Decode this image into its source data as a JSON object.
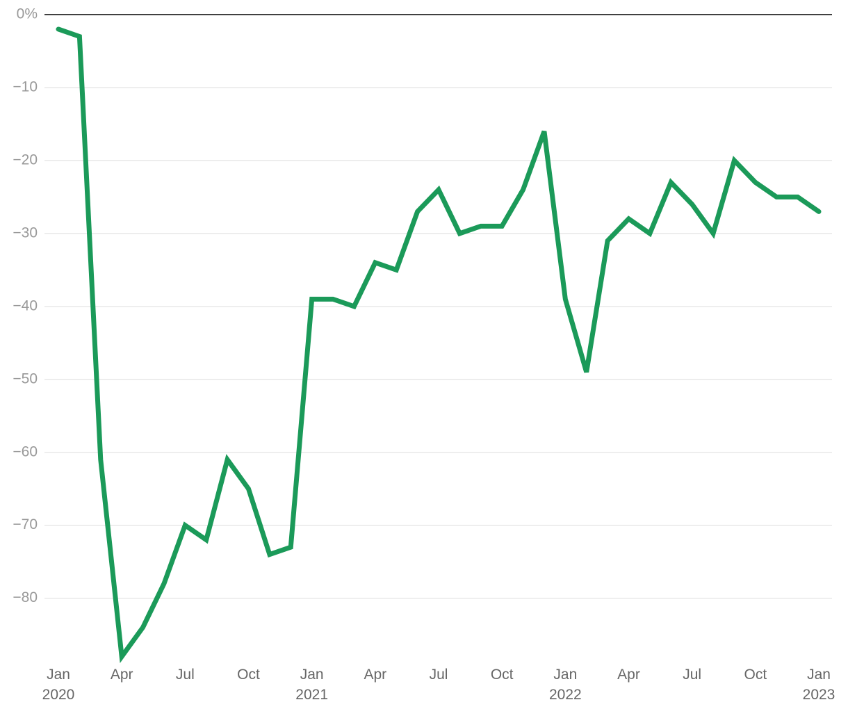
{
  "chart_data": {
    "type": "line",
    "categories": [
      "Jan\n2020",
      null,
      null,
      "Apr",
      null,
      null,
      "Jul",
      null,
      null,
      "Oct",
      null,
      null,
      "Jan\n2021",
      null,
      null,
      "Apr",
      null,
      null,
      "Jul",
      null,
      null,
      "Oct",
      null,
      null,
      "Jan\n2022",
      null,
      null,
      "Apr",
      null,
      null,
      "Jul",
      null,
      null,
      "Oct",
      null,
      null,
      "Jan\n2023"
    ],
    "series": [
      {
        "color": "#1b9a59",
        "values": [
          -2,
          -3,
          -61,
          -88,
          -84,
          -78,
          -70,
          -72,
          -61,
          -65,
          -74,
          -73,
          -39,
          -39,
          -40,
          -34,
          -35,
          -27,
          -24,
          -30,
          -29,
          -29,
          -24,
          -16,
          -39,
          -49,
          -31,
          -28,
          -30,
          -23,
          -26,
          -30,
          -20,
          -23,
          -25,
          -25,
          -27
        ]
      }
    ],
    "ylim": [
      -88.8,
      0
    ],
    "yticks": [
      {
        "value": 0,
        "label": "0%"
      },
      {
        "value": -10,
        "label": "−10"
      },
      {
        "value": -20,
        "label": "−20"
      },
      {
        "value": -30,
        "label": "−30"
      },
      {
        "value": -40,
        "label": "−40"
      },
      {
        "value": -50,
        "label": "−50"
      },
      {
        "value": -60,
        "label": "−60"
      },
      {
        "value": -70,
        "label": "−70"
      },
      {
        "value": -80,
        "label": "−80"
      }
    ],
    "grid": true
  }
}
